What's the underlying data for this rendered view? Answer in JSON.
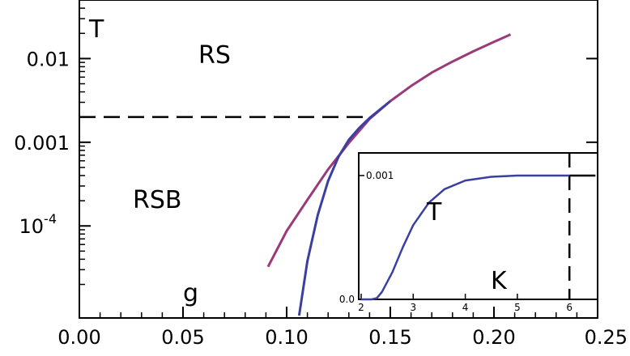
{
  "chart_data": [
    {
      "type": "line",
      "xlabel": "g",
      "ylabel": "T",
      "xlim": [
        0.0,
        0.25
      ],
      "ylim_log10": [
        -5.1,
        -1.3
      ],
      "yscale": "log",
      "x_tick_labels": [
        "0.00",
        "0.05",
        "0.10",
        "0.15",
        "0.20",
        "0.25"
      ],
      "x_ticks": [
        0.0,
        0.05,
        0.1,
        0.15,
        0.2,
        0.25
      ],
      "y_ticks_log10": [
        -2,
        -3,
        -4
      ],
      "y_tick_labels": [
        {
          "mantissa": "0.01",
          "exp": ""
        },
        {
          "mantissa": "0.001",
          "exp": ""
        },
        {
          "mantissa": "10",
          "exp": "-4"
        }
      ],
      "region_labels": [
        "RS",
        "RSB"
      ],
      "series": [
        {
          "color": "#9a3a78",
          "x": [
            0.091,
            0.1,
            0.11,
            0.12,
            0.13,
            0.14,
            0.15,
            0.16,
            0.17,
            0.18,
            0.19,
            0.2,
            0.208
          ],
          "y": [
            3.25e-05,
            8.7e-05,
            0.000205,
            0.000475,
            0.00098,
            0.0019,
            0.0031,
            0.0047,
            0.0068,
            0.0092,
            0.0122,
            0.0158,
            0.0194
          ]
        },
        {
          "color": "#3a3fa0",
          "x": [
            0.106,
            0.11,
            0.115,
            0.12,
            0.125,
            0.13,
            0.135,
            0.14,
            0.15
          ],
          "y": [
            8.5e-06,
            3.8e-05,
            0.000135,
            0.000345,
            0.00067,
            0.00107,
            0.00148,
            0.00195,
            0.0031
          ]
        }
      ],
      "dashed_line": {
        "y": 0.002,
        "x_end": 0.14
      }
    },
    {
      "type": "line",
      "inset": true,
      "xlabel": "K",
      "ylabel": "T",
      "xlim": [
        2,
        6.5
      ],
      "ylim": [
        0.0,
        0.00115
      ],
      "x_ticks": [
        2,
        3,
        4,
        5,
        6
      ],
      "x_tick_labels": [
        "2",
        "3",
        "4",
        "5",
        "6"
      ],
      "y_ticks": [
        0.0,
        0.001
      ],
      "y_tick_labels": [
        "0.0",
        "0.001"
      ],
      "series": [
        {
          "color": "#3a3fa0",
          "x": [
            2.0,
            2.2,
            2.3,
            2.4,
            2.6,
            2.8,
            3.0,
            3.3,
            3.6,
            4.0,
            4.5,
            5.0,
            5.5,
            6.0
          ],
          "y": [
            0.0,
            0.0,
            1e-05,
            6e-05,
            0.00022,
            0.00042,
            0.0006,
            0.00078,
            0.00089,
            0.00096,
            0.00099,
            0.001,
            0.001,
            0.001
          ]
        },
        {
          "color": "#000000",
          "x": [
            6.0,
            6.5
          ],
          "y": [
            0.001,
            0.001
          ]
        }
      ],
      "dashed_line": {
        "x": 6.0
      }
    }
  ]
}
